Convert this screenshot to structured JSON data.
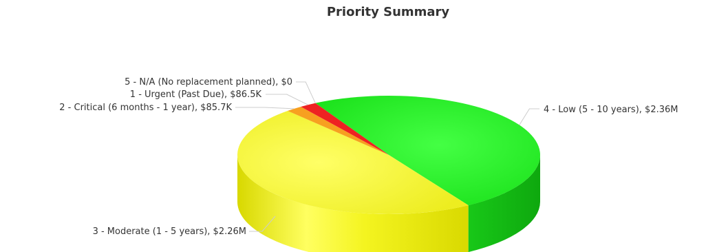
{
  "chart_data": {
    "type": "pie",
    "title": "Priority Summary",
    "slices": [
      {
        "name": "4 - Low (5 - 10 years)",
        "value_label": "$2.36M",
        "value": 2360000,
        "color": "#22ee22",
        "side": "#11bb11"
      },
      {
        "name": "3 - Moderate (1 - 5 years)",
        "value_label": "$2.26M",
        "value": 2260000,
        "color": "#f5f532",
        "side": "#e0e010"
      },
      {
        "name": "2 - Critical (6 months - 1 year)",
        "value_label": "$85.7K",
        "value": 85700,
        "color": "#f7a020",
        "side": "#d88000"
      },
      {
        "name": "1 - Urgent (Past Due)",
        "value_label": "$86.5K",
        "value": 86500,
        "color": "#ee2222",
        "side": "#bb1111"
      },
      {
        "name": "5 - N/A (No replacement planned)",
        "value_label": "$0",
        "value": 0,
        "color": "#4466ee",
        "side": "#2244bb"
      }
    ]
  }
}
